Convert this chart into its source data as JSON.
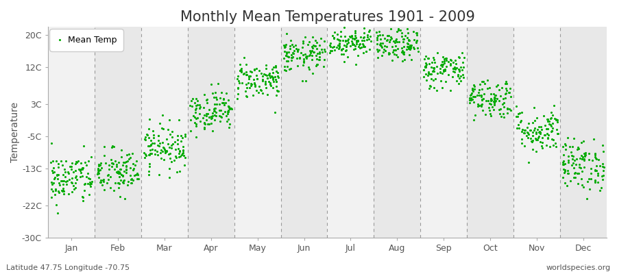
{
  "title": "Monthly Mean Temperatures 1901 - 2009",
  "ylabel": "Temperature",
  "subtitle_left": "Latitude 47.75 Longitude -70.75",
  "subtitle_right": "worldspecies.org",
  "legend_label": "Mean Temp",
  "dot_color": "#00aa00",
  "background_color": "#ffffff",
  "band_color_light": "#f2f2f2",
  "band_color_dark": "#e8e8e8",
  "yticks": [
    -30,
    -22,
    -13,
    -5,
    3,
    12,
    20
  ],
  "ylim": [
    -30,
    22
  ],
  "months": [
    "Jan",
    "Feb",
    "Mar",
    "Apr",
    "May",
    "Jun",
    "Jul",
    "Aug",
    "Sep",
    "Oct",
    "Nov",
    "Dec"
  ],
  "month_means": [
    -15.5,
    -14.0,
    -7.5,
    1.5,
    9.0,
    15.0,
    18.5,
    17.5,
    11.5,
    4.5,
    -3.5,
    -12.0
  ],
  "month_stds": [
    3.2,
    3.0,
    2.8,
    2.5,
    2.3,
    2.2,
    2.0,
    2.0,
    2.3,
    2.5,
    2.8,
    3.2
  ],
  "n_years": 109,
  "title_fontsize": 15,
  "axis_fontsize": 10,
  "tick_fontsize": 9,
  "legend_fontsize": 9,
  "dot_size": 5,
  "dot_alpha": 1.0
}
